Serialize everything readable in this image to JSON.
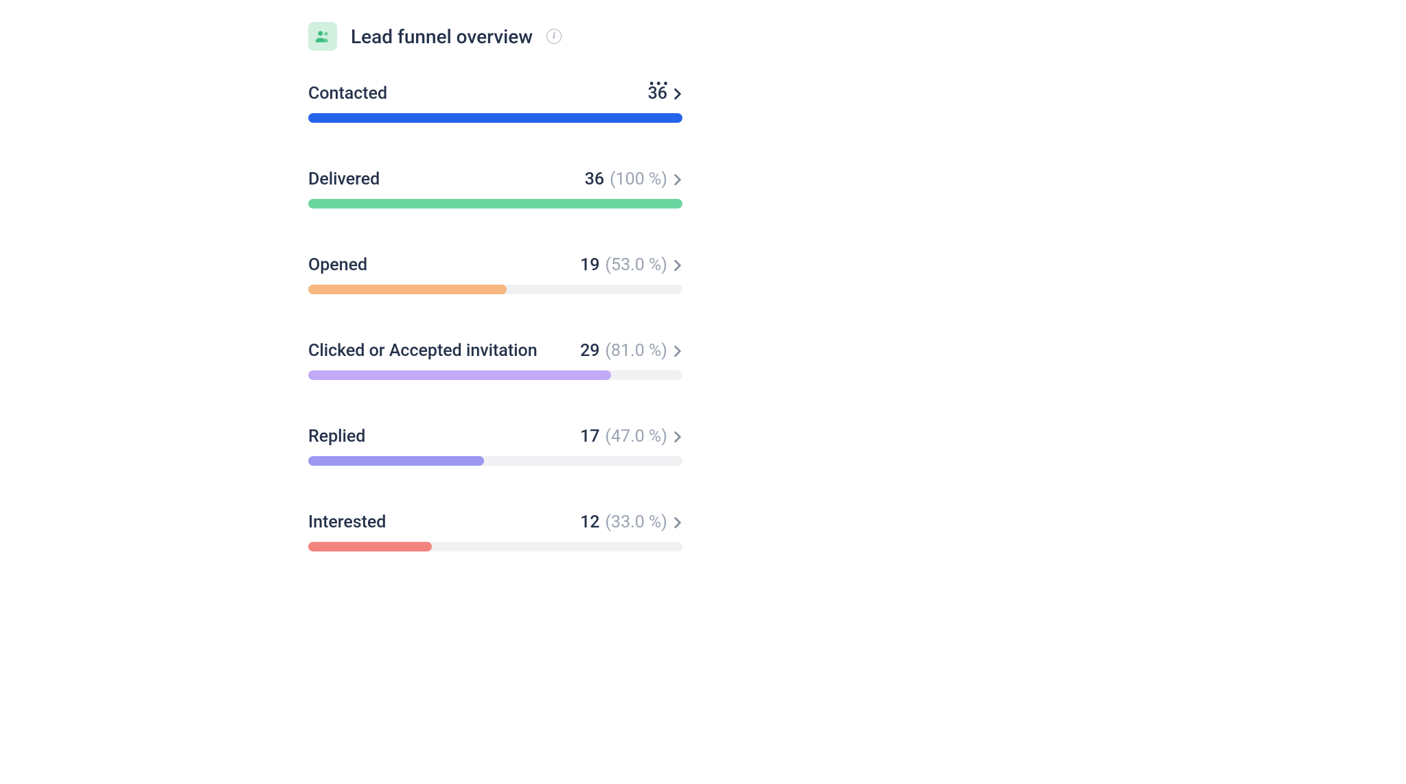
{
  "header": {
    "title": "Lead funnel overview",
    "icon_bg": "#d1f0df",
    "icon_fg": "#3dbd7d"
  },
  "track_color": "#f1f1f3",
  "label_color": "#25324b",
  "percent_color": "#9aa3b2",
  "stages": [
    {
      "key": "contacted",
      "label": "Contacted",
      "value": "36",
      "percent": null,
      "fill_pct": 100,
      "color": "#2563eb",
      "chevron_dark": true
    },
    {
      "key": "delivered",
      "label": "Delivered",
      "value": "36",
      "percent": "(100 %)",
      "fill_pct": 100,
      "color": "#6ad6a0",
      "chevron_dark": false
    },
    {
      "key": "opened",
      "label": "Opened",
      "value": "19",
      "percent": "(53.0 %)",
      "fill_pct": 53,
      "color": "#f7b77e",
      "chevron_dark": false
    },
    {
      "key": "clicked",
      "label": "Clicked or Accepted invitation",
      "value": "29",
      "percent": "(81.0 %)",
      "fill_pct": 81,
      "color": "#c2aaf7",
      "chevron_dark": false
    },
    {
      "key": "replied",
      "label": "Replied",
      "value": "17",
      "percent": "(47.0 %)",
      "fill_pct": 47,
      "color": "#9c98f2",
      "chevron_dark": false
    },
    {
      "key": "interested",
      "label": "Interested",
      "value": "12",
      "percent": "(33.0 %)",
      "fill_pct": 33,
      "color": "#f3837e",
      "chevron_dark": false
    }
  ]
}
